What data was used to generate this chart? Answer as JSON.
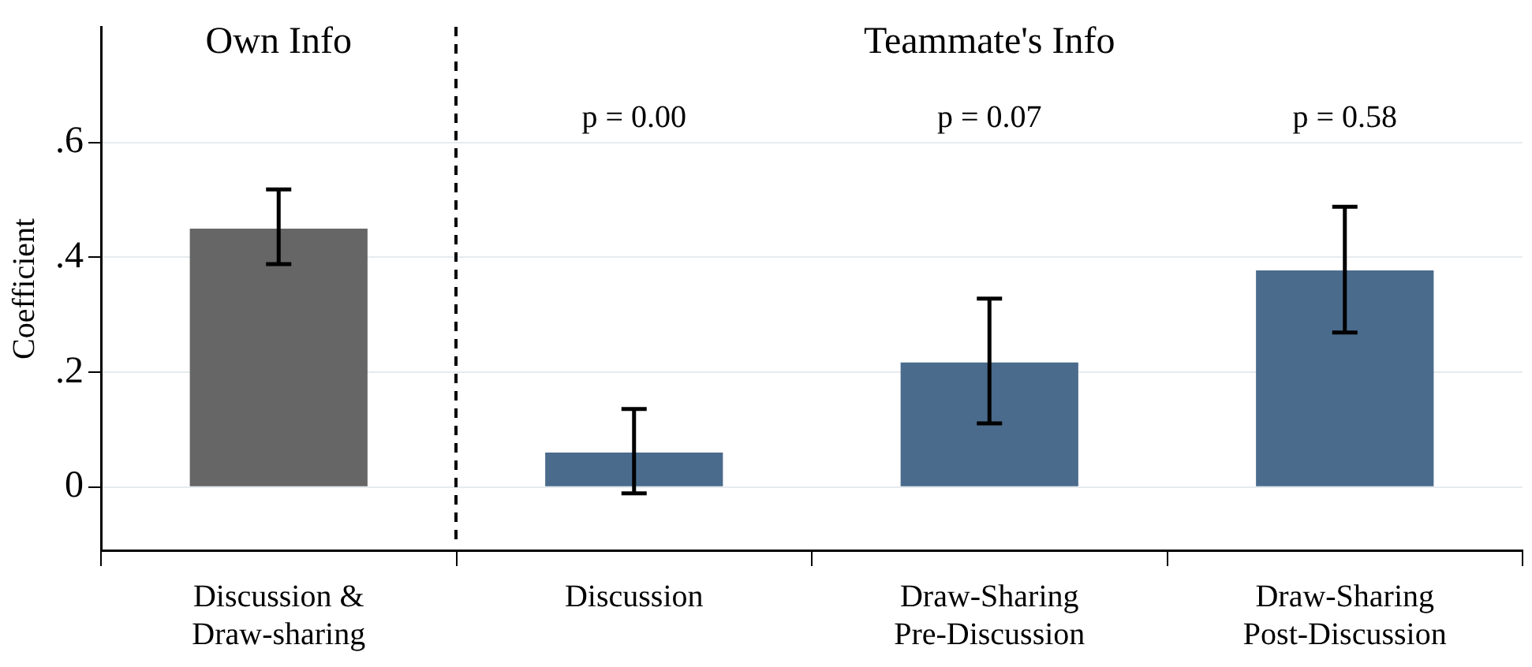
{
  "chart_data": {
    "type": "bar",
    "ylabel": "Coefficient",
    "categories": [
      "Discussion &\nDraw-sharing",
      "Discussion",
      "Draw-Sharing\nPre-Discussion",
      "Draw-Sharing\nPost-Discussion"
    ],
    "values": [
      0.45,
      0.06,
      0.217,
      0.377
    ],
    "colors": [
      "#666666",
      "#4a6b8c",
      "#4a6b8c",
      "#4a6b8c"
    ],
    "errors": [
      [
        0.388,
        0.518
      ],
      [
        -0.011,
        0.136
      ],
      [
        0.111,
        0.328
      ],
      [
        0.269,
        0.488
      ]
    ],
    "ylim": [
      -0.11,
      0.8
    ],
    "yticks": [
      {
        "value": 0,
        "label": "0"
      },
      {
        "value": 0.2,
        "label": ".2"
      },
      {
        "value": 0.4,
        "label": ".4"
      },
      {
        "value": 0.6,
        "label": ".6"
      }
    ],
    "grid": "y",
    "annotations": [
      "Own Info",
      "Teammate's Info",
      "p = 0.00",
      "p = 0.07",
      "p = 0.58"
    ]
  }
}
